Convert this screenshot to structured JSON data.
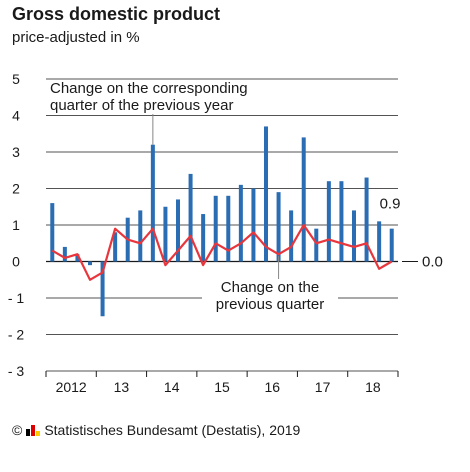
{
  "chart_data": {
    "type": "bar",
    "title": "Gross domestic product",
    "subtitle": "price-adjusted in %",
    "ylim": [
      -3,
      5
    ],
    "yticks": [
      "5",
      "4",
      "3",
      "2",
      "1",
      "0",
      "- 1",
      "- 2",
      "- 3"
    ],
    "ytick_values": [
      5,
      4,
      3,
      2,
      1,
      0,
      -1,
      -2,
      -3
    ],
    "grid": true,
    "x_year_labels": [
      "2012",
      "13",
      "14",
      "15",
      "16",
      "17",
      "18"
    ],
    "quarters": [
      "2012 Q1",
      "2012 Q2",
      "2012 Q3",
      "2012 Q4",
      "2013 Q1",
      "2013 Q2",
      "2013 Q3",
      "2013 Q4",
      "2014 Q1",
      "2014 Q2",
      "2014 Q3",
      "2014 Q4",
      "2015 Q1",
      "2015 Q2",
      "2015 Q3",
      "2015 Q4",
      "2016 Q1",
      "2016 Q2",
      "2016 Q3",
      "2016 Q4",
      "2017 Q1",
      "2017 Q2",
      "2017 Q3",
      "2017 Q4",
      "2018 Q1",
      "2018 Q2",
      "2018 Q3",
      "2018 Q4"
    ],
    "series": [
      {
        "name": "Change on the corresponding quarter of the previous year",
        "kind": "bar",
        "color": "#2a6db3",
        "values": [
          1.6,
          0.4,
          0.2,
          -0.1,
          -1.5,
          0.8,
          1.2,
          1.4,
          3.2,
          1.5,
          1.7,
          2.4,
          1.3,
          1.8,
          1.8,
          2.1,
          2.0,
          3.7,
          1.9,
          1.4,
          3.4,
          0.9,
          2.2,
          2.2,
          1.4,
          2.3,
          1.1,
          0.9
        ]
      },
      {
        "name": "Change on the previous quarter",
        "kind": "line",
        "color": "#e8363c",
        "values": [
          0.3,
          0.1,
          0.2,
          -0.5,
          -0.3,
          0.9,
          0.6,
          0.5,
          0.9,
          -0.1,
          0.3,
          0.7,
          -0.1,
          0.5,
          0.3,
          0.5,
          0.8,
          0.4,
          0.2,
          0.4,
          1.0,
          0.5,
          0.6,
          0.5,
          0.4,
          0.5,
          -0.2,
          0.0
        ]
      }
    ],
    "annotations": {
      "yoy_label_line1": "Change on the corresponding",
      "yoy_label_line2": "quarter of the previous year",
      "qoq_label_line1": "Change on the",
      "qoq_label_line2": "previous quarter",
      "last_bar_value": "0.9",
      "last_line_value": "0.0"
    }
  },
  "source": {
    "copyright": "©",
    "text": "Statistisches Bundesamt (Destatis), 2019",
    "flag_colors": [
      "#000000",
      "#dd0000",
      "#ffcc00"
    ]
  }
}
